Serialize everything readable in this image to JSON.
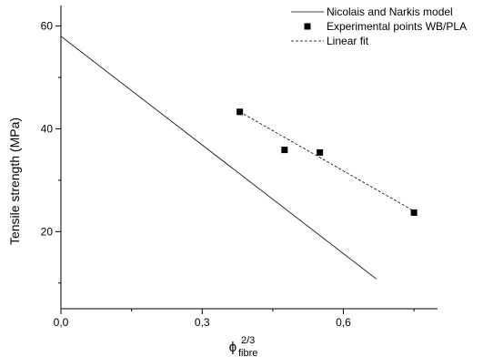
{
  "chart_data": {
    "type": "scatter",
    "title": "",
    "ylabel": "Tensile strength (MPa)",
    "xlabel": {
      "symbol": "ϕ",
      "subscript": "fibre",
      "superscript": "2/3"
    },
    "xlim": [
      0.0,
      0.8
    ],
    "ylim": [
      5,
      64
    ],
    "x_ticks": [
      0.0,
      0.3,
      0.6
    ],
    "x_tick_labels": [
      "0,0",
      "0,3",
      "0,6"
    ],
    "x_minor_ticks": [
      0.15,
      0.45,
      0.75
    ],
    "y_ticks": [
      20,
      40,
      60
    ],
    "y_tick_labels": [
      "20",
      "40",
      "60"
    ],
    "y_minor_ticks": [
      10,
      30,
      50
    ],
    "grid": false,
    "legend_position": "top-right",
    "series": [
      {
        "name": "Nicolais and Narkis model",
        "kind": "line",
        "style": "solid",
        "x": [
          0.0,
          0.67
        ],
        "y": [
          58.0,
          10.8
        ]
      },
      {
        "name": "Experimental points WB/PLA",
        "kind": "scatter",
        "marker": "square",
        "x": [
          0.38,
          0.475,
          0.55,
          0.75
        ],
        "y": [
          43.3,
          35.9,
          35.4,
          23.7
        ]
      },
      {
        "name": "Linear fit",
        "kind": "line",
        "style": "dashed",
        "x": [
          0.38,
          0.75
        ],
        "y": [
          43.3,
          24.0
        ]
      }
    ]
  }
}
